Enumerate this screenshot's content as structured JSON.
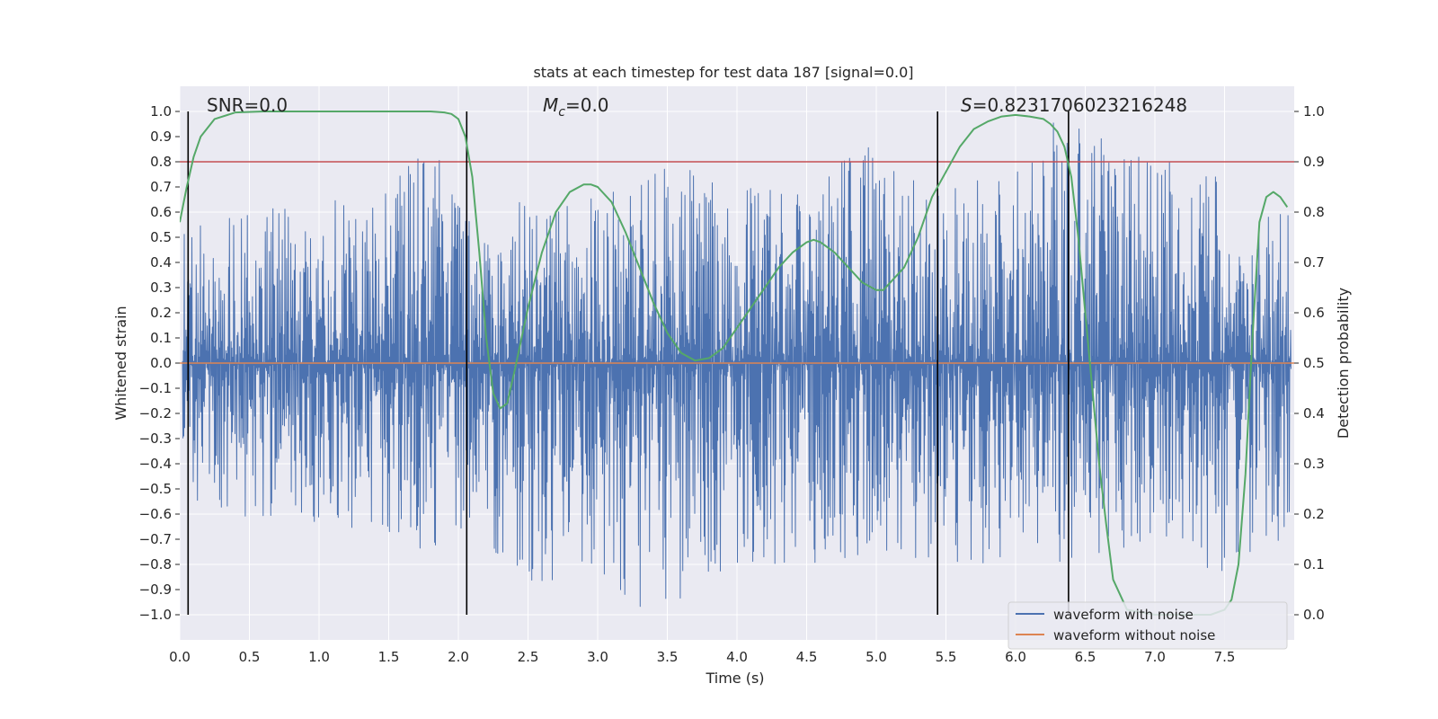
{
  "chart_data": {
    "type": "line",
    "title": "stats at each timestep for test data 187 [signal=0.0]",
    "xlabel": "Time (s)",
    "ylabel": "Whitened strain",
    "y2label": "Detection probability",
    "xlim": [
      0.0,
      8.0
    ],
    "ylim": [
      -1.1,
      1.1
    ],
    "y2lim": [
      -0.05,
      1.05
    ],
    "x_ticks": [
      0.0,
      0.5,
      1.0,
      1.5,
      2.0,
      2.5,
      3.0,
      3.5,
      4.0,
      4.5,
      5.0,
      5.5,
      6.0,
      6.5,
      7.0,
      7.5
    ],
    "x_tick_labels": [
      "0.0",
      "0.5",
      "1.0",
      "1.5",
      "2.0",
      "2.5",
      "3.0",
      "3.5",
      "4.0",
      "4.5",
      "5.0",
      "5.5",
      "6.0",
      "6.5",
      "7.0",
      "7.5"
    ],
    "y_ticks": [
      1.0,
      0.9,
      0.8,
      0.7,
      0.6,
      0.5,
      0.4,
      0.3,
      0.2,
      0.1,
      0.0,
      -0.1,
      -0.2,
      -0.3,
      -0.4,
      -0.5,
      -0.6,
      -0.7,
      -0.8,
      -0.9,
      -1.0
    ],
    "y_tick_labels": [
      "1.0",
      "0.9",
      "0.8",
      "0.7",
      "0.6",
      "0.5",
      "0.4",
      "0.3",
      "0.2",
      "0.1",
      "0.0",
      "−0.1",
      "−0.2",
      "−0.3",
      "−0.4",
      "−0.5",
      "−0.6",
      "−0.7",
      "−0.8",
      "−0.9",
      "−1.0"
    ],
    "y2_ticks": [
      1.0,
      0.9,
      0.8,
      0.7,
      0.6,
      0.5,
      0.4,
      0.3,
      0.2,
      0.1,
      0.0
    ],
    "y2_tick_labels": [
      "1.0",
      "0.9",
      "0.8",
      "0.7",
      "0.6",
      "0.5",
      "0.4",
      "0.3",
      "0.2",
      "0.1",
      "0.0"
    ],
    "grid": true,
    "legend_position": "bottom-right",
    "annotations": {
      "snr": "SNR=0.0",
      "mc_symbol": "M",
      "mc_subscript": "c",
      "mc_value": "=0.0",
      "s_symbol": "S",
      "s_value": "=0.8231706023216248"
    },
    "vertical_lines_x": [
      0.06,
      2.06,
      5.44,
      6.38
    ],
    "threshold_probability": 0.9,
    "series": [
      {
        "name": "waveform with noise",
        "color": "#4c72b0",
        "axis": "left",
        "description": "dense noisy whitened strain, peak envelope",
        "envelope_x": [
          0.0,
          0.5,
          1.0,
          1.5,
          1.8,
          2.0,
          2.5,
          3.0,
          3.5,
          4.0,
          4.5,
          4.95,
          5.5,
          6.0,
          6.3,
          6.5,
          7.0,
          7.5,
          7.95
        ],
        "envelope_max": [
          0.55,
          0.62,
          0.65,
          0.68,
          0.92,
          0.63,
          0.64,
          0.66,
          0.82,
          0.7,
          0.72,
          0.9,
          0.68,
          0.79,
          0.99,
          0.92,
          0.82,
          0.74,
          0.63
        ],
        "envelope_min": [
          -0.52,
          -0.62,
          -0.63,
          -0.7,
          -0.75,
          -0.68,
          -0.88,
          -0.92,
          -1.0,
          -0.8,
          -0.8,
          -0.76,
          -0.79,
          -0.8,
          -0.79,
          -0.78,
          -0.7,
          -0.85,
          -0.7
        ]
      },
      {
        "name": "waveform without noise",
        "color": "#dd8452",
        "axis": "left",
        "x": [
          0.0,
          8.0
        ],
        "values": [
          0.0,
          0.0
        ]
      },
      {
        "name": "detection probability",
        "color": "#55a868",
        "axis": "right",
        "x": [
          0.0,
          0.05,
          0.1,
          0.15,
          0.25,
          0.4,
          0.6,
          1.0,
          1.5,
          1.8,
          1.9,
          1.95,
          2.0,
          2.05,
          2.1,
          2.15,
          2.2,
          2.25,
          2.3,
          2.35,
          2.4,
          2.5,
          2.6,
          2.7,
          2.8,
          2.9,
          2.95,
          3.0,
          3.1,
          3.2,
          3.3,
          3.4,
          3.5,
          3.6,
          3.7,
          3.8,
          3.9,
          4.0,
          4.1,
          4.2,
          4.3,
          4.4,
          4.5,
          4.55,
          4.6,
          4.7,
          4.8,
          4.9,
          5.0,
          5.05,
          5.1,
          5.2,
          5.3,
          5.4,
          5.5,
          5.6,
          5.7,
          5.8,
          5.9,
          6.0,
          6.1,
          6.2,
          6.25,
          6.3,
          6.35,
          6.4,
          6.45,
          6.5,
          6.55,
          6.6,
          6.65,
          6.7,
          6.8,
          7.0,
          7.2,
          7.4,
          7.5,
          7.55,
          7.6,
          7.65,
          7.7,
          7.75,
          7.8,
          7.85,
          7.9,
          7.95
        ],
        "values": [
          0.78,
          0.85,
          0.91,
          0.95,
          0.985,
          0.998,
          1.0,
          1.0,
          1.0,
          1.0,
          0.998,
          0.995,
          0.985,
          0.95,
          0.87,
          0.72,
          0.55,
          0.44,
          0.41,
          0.42,
          0.48,
          0.61,
          0.72,
          0.8,
          0.84,
          0.855,
          0.855,
          0.85,
          0.82,
          0.76,
          0.69,
          0.62,
          0.56,
          0.52,
          0.505,
          0.51,
          0.53,
          0.57,
          0.61,
          0.65,
          0.69,
          0.72,
          0.74,
          0.745,
          0.74,
          0.72,
          0.69,
          0.66,
          0.645,
          0.645,
          0.66,
          0.69,
          0.75,
          0.83,
          0.88,
          0.93,
          0.965,
          0.98,
          0.99,
          0.993,
          0.99,
          0.985,
          0.975,
          0.96,
          0.93,
          0.87,
          0.75,
          0.6,
          0.45,
          0.3,
          0.18,
          0.07,
          0.01,
          0.0,
          0.0,
          0.0,
          0.01,
          0.03,
          0.1,
          0.28,
          0.55,
          0.78,
          0.83,
          0.84,
          0.83,
          0.81
        ]
      }
    ]
  }
}
